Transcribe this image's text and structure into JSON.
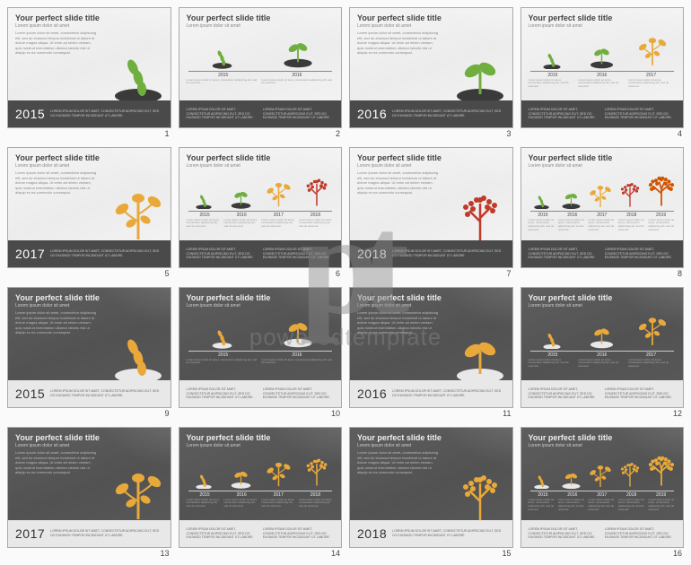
{
  "watermark": {
    "logo": "pt",
    "text": "poweredtemplate"
  },
  "common": {
    "title": "Your perfect slide title",
    "subtitle": "Lorem ipsum dolor sit amet",
    "lorem_block": "Lorem ipsum dolor sit amet, consectetur adipiscing elit, sed do eiusmod tempor incididunt ut labore et dolore magna aliqua. Ut enim ad minim veniam, quis nostrud exercitation ullamco laboris nisi ut aliquip ex ea commodo consequat.",
    "lorem_small": "Lorem ipsum dolor sit amet, consectetur adipiscing elit, sed do eiusmod.",
    "band_lorem": "LOREM IPSUM DOLOR SIT AMET, CONSECTETUR ADIPISCING ELIT, SED DO EIUSMOD TEMPOR INCIDIDUNT UT LABORE."
  },
  "slides": [
    {
      "num": 1,
      "theme": "light",
      "layout": "large",
      "year": "2015",
      "graphic": "seed",
      "colors": [
        "#6fae3f"
      ]
    },
    {
      "num": 2,
      "theme": "light",
      "layout": "timeline",
      "years": [
        "2015",
        "2016"
      ],
      "graphics": [
        "seed",
        "sprout"
      ],
      "colors": [
        "#6fae3f",
        "#6fae3f"
      ]
    },
    {
      "num": 3,
      "theme": "light",
      "layout": "large",
      "year": "2016",
      "graphic": "sprout",
      "colors": [
        "#6fae3f"
      ]
    },
    {
      "num": 4,
      "theme": "light",
      "layout": "timeline",
      "years": [
        "2015",
        "2016",
        "2017"
      ],
      "graphics": [
        "seed",
        "sprout",
        "sapling"
      ],
      "colors": [
        "#6fae3f",
        "#6fae3f",
        "#e8a93a"
      ]
    },
    {
      "num": 5,
      "theme": "light",
      "layout": "large",
      "year": "2017",
      "graphic": "sapling",
      "colors": [
        "#e8a93a"
      ]
    },
    {
      "num": 6,
      "theme": "light",
      "layout": "timeline",
      "years": [
        "2015",
        "2016",
        "2017",
        "2018"
      ],
      "graphics": [
        "seed",
        "sprout",
        "sapling",
        "tree"
      ],
      "colors": [
        "#6fae3f",
        "#6fae3f",
        "#e8a93a",
        "#c1392b"
      ]
    },
    {
      "num": 7,
      "theme": "light",
      "layout": "large",
      "year": "2018",
      "graphic": "tree",
      "colors": [
        "#c1392b"
      ]
    },
    {
      "num": 8,
      "theme": "light",
      "layout": "timeline",
      "years": [
        "2015",
        "2016",
        "2017",
        "2018",
        "2019"
      ],
      "graphics": [
        "seed",
        "sprout",
        "sapling",
        "tree",
        "bigtree"
      ],
      "colors": [
        "#6fae3f",
        "#6fae3f",
        "#e8a93a",
        "#c1392b",
        "#d35400"
      ]
    },
    {
      "num": 9,
      "theme": "dark",
      "layout": "large",
      "year": "2015",
      "graphic": "seed",
      "colors": [
        "#e8a93a"
      ]
    },
    {
      "num": 10,
      "theme": "dark",
      "layout": "timeline",
      "years": [
        "2015",
        "2016"
      ],
      "graphics": [
        "seed",
        "sprout"
      ],
      "colors": [
        "#e8a93a",
        "#e8a93a"
      ]
    },
    {
      "num": 11,
      "theme": "dark",
      "layout": "large",
      "year": "2016",
      "graphic": "sprout",
      "colors": [
        "#e8a93a"
      ]
    },
    {
      "num": 12,
      "theme": "dark",
      "layout": "timeline",
      "years": [
        "2015",
        "2016",
        "2017"
      ],
      "graphics": [
        "seed",
        "sprout",
        "sapling"
      ],
      "colors": [
        "#e8a93a",
        "#e8a93a",
        "#e8a93a"
      ]
    },
    {
      "num": 13,
      "theme": "dark",
      "layout": "large",
      "year": "2017",
      "graphic": "sapling",
      "colors": [
        "#e8a93a"
      ]
    },
    {
      "num": 14,
      "theme": "dark",
      "layout": "timeline",
      "years": [
        "2015",
        "2016",
        "2017",
        "2018"
      ],
      "graphics": [
        "seed",
        "sprout",
        "sapling",
        "tree"
      ],
      "colors": [
        "#e8a93a",
        "#e8a93a",
        "#e8a93a",
        "#e8a93a"
      ]
    },
    {
      "num": 15,
      "theme": "dark",
      "layout": "large",
      "year": "2018",
      "graphic": "tree",
      "colors": [
        "#e8a93a"
      ]
    },
    {
      "num": 16,
      "theme": "dark",
      "layout": "timeline",
      "years": [
        "2015",
        "2016",
        "2017",
        "2018",
        "2019"
      ],
      "graphics": [
        "seed",
        "sprout",
        "sapling",
        "tree",
        "bigtree"
      ],
      "colors": [
        "#e8a93a",
        "#e8a93a",
        "#e8a93a",
        "#e8a93a",
        "#e8a93a"
      ]
    }
  ],
  "soil_color_light": "#3a3a3a",
  "soil_color_dark": "#e8e8e8"
}
